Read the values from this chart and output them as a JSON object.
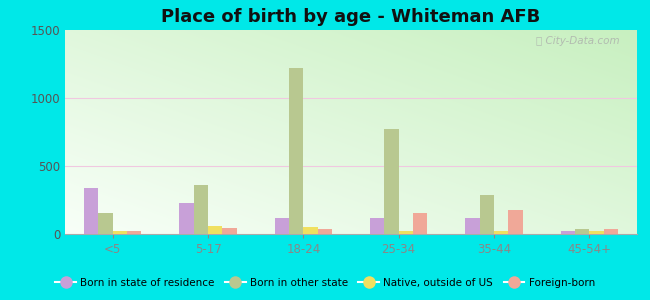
{
  "title": "Place of birth by age - Whiteman AFB",
  "categories": [
    "<5",
    "5-17",
    "18-24",
    "25-34",
    "35-44",
    "45-54+"
  ],
  "series": {
    "Born in state of residence": [
      335,
      230,
      120,
      115,
      115,
      20
    ],
    "Born in other state": [
      155,
      360,
      1220,
      775,
      290,
      40
    ],
    "Native, outside of US": [
      20,
      60,
      55,
      20,
      20,
      20
    ],
    "Foreign-born": [
      25,
      45,
      40,
      155,
      175,
      35
    ]
  },
  "colors": {
    "Born in state of residence": "#c8a0d8",
    "Born in other state": "#b8c890",
    "Native, outside of US": "#f0e060",
    "Foreign-born": "#f0a898"
  },
  "ylim": [
    0,
    1500
  ],
  "yticks": [
    0,
    500,
    1000,
    1500
  ],
  "background_outer": "#00e8e8",
  "watermark": "City-Data.com",
  "title_fontsize": 13,
  "bar_width": 0.15,
  "grad_colors": [
    "#c8f0c0",
    "#f8fff8"
  ],
  "grid_color": "#e8c8e8",
  "tick_color": "#555555"
}
